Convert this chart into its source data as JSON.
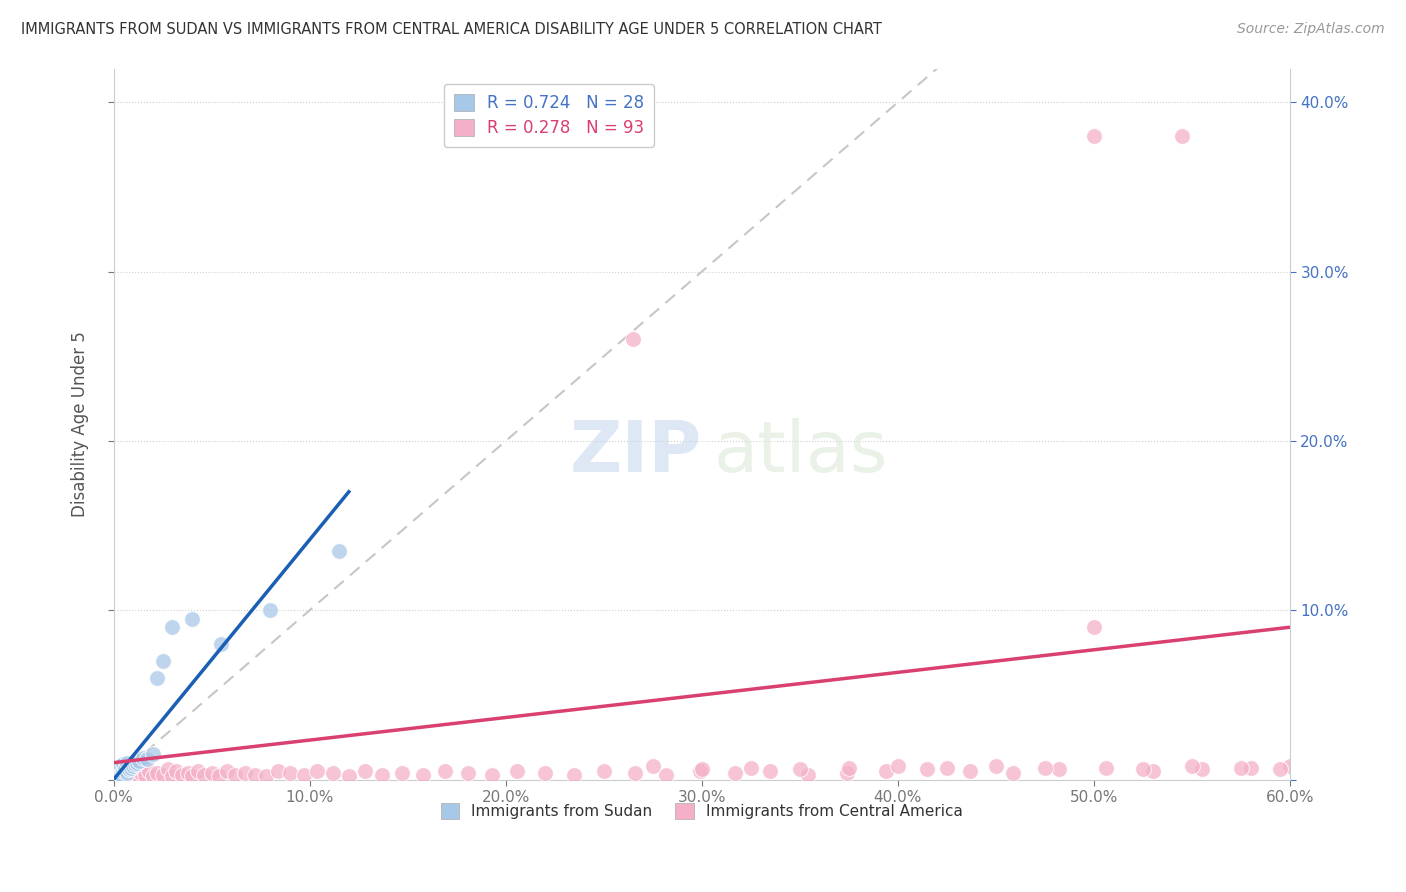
{
  "title": "IMMIGRANTS FROM SUDAN VS IMMIGRANTS FROM CENTRAL AMERICA DISABILITY AGE UNDER 5 CORRELATION CHART",
  "source": "Source: ZipAtlas.com",
  "ylabel": "Disability Age Under 5",
  "xlabel_sudan": "Immigrants from Sudan",
  "xlabel_ca": "Immigrants from Central America",
  "R_sudan": 0.724,
  "N_sudan": 28,
  "R_ca": 0.278,
  "N_ca": 93,
  "xlim": [
    0,
    0.6
  ],
  "ylim": [
    0,
    0.42
  ],
  "yticks": [
    0.0,
    0.1,
    0.2,
    0.3,
    0.4
  ],
  "xticks": [
    0.0,
    0.1,
    0.2,
    0.3,
    0.4,
    0.5,
    0.6
  ],
  "color_sudan": "#a8c8e8",
  "color_ca": "#f4b0c8",
  "trend_sudan": "#1a5fb4",
  "trend_ca": "#d94070",
  "background_color": "#ffffff",
  "sudan_x": [
    0.001,
    0.002,
    0.002,
    0.003,
    0.003,
    0.004,
    0.004,
    0.005,
    0.005,
    0.006,
    0.007,
    0.007,
    0.008,
    0.009,
    0.01,
    0.011,
    0.012,
    0.013,
    0.015,
    0.017,
    0.02,
    0.022,
    0.025,
    0.03,
    0.04,
    0.055,
    0.08,
    0.115
  ],
  "sudan_y": [
    0.002,
    0.003,
    0.005,
    0.004,
    0.007,
    0.003,
    0.008,
    0.005,
    0.009,
    0.006,
    0.004,
    0.01,
    0.006,
    0.007,
    0.008,
    0.009,
    0.01,
    0.011,
    0.013,
    0.012,
    0.015,
    0.06,
    0.07,
    0.09,
    0.095,
    0.08,
    0.1,
    0.135
  ],
  "ca_x": [
    0.001,
    0.002,
    0.002,
    0.003,
    0.003,
    0.004,
    0.004,
    0.005,
    0.005,
    0.006,
    0.006,
    0.007,
    0.008,
    0.008,
    0.009,
    0.01,
    0.01,
    0.011,
    0.012,
    0.013,
    0.014,
    0.015,
    0.016,
    0.018,
    0.02,
    0.022,
    0.025,
    0.028,
    0.03,
    0.032,
    0.035,
    0.038,
    0.04,
    0.043,
    0.046,
    0.05,
    0.054,
    0.058,
    0.062,
    0.067,
    0.072,
    0.078,
    0.084,
    0.09,
    0.097,
    0.104,
    0.112,
    0.12,
    0.128,
    0.137,
    0.147,
    0.158,
    0.169,
    0.181,
    0.193,
    0.206,
    0.22,
    0.235,
    0.25,
    0.266,
    0.282,
    0.299,
    0.317,
    0.335,
    0.354,
    0.374,
    0.394,
    0.415,
    0.437,
    0.459,
    0.482,
    0.506,
    0.53,
    0.555,
    0.58,
    0.6,
    0.595,
    0.575,
    0.55,
    0.525,
    0.5,
    0.475,
    0.45,
    0.425,
    0.4,
    0.375,
    0.35,
    0.325,
    0.3,
    0.275,
    0.265,
    0.5,
    0.545
  ],
  "ca_y": [
    0.003,
    0.002,
    0.005,
    0.003,
    0.006,
    0.002,
    0.004,
    0.003,
    0.007,
    0.002,
    0.005,
    0.003,
    0.004,
    0.006,
    0.002,
    0.004,
    0.007,
    0.003,
    0.005,
    0.002,
    0.004,
    0.006,
    0.003,
    0.005,
    0.002,
    0.004,
    0.003,
    0.006,
    0.002,
    0.005,
    0.003,
    0.004,
    0.002,
    0.005,
    0.003,
    0.004,
    0.002,
    0.005,
    0.003,
    0.004,
    0.003,
    0.002,
    0.005,
    0.004,
    0.003,
    0.005,
    0.004,
    0.002,
    0.005,
    0.003,
    0.004,
    0.003,
    0.005,
    0.004,
    0.003,
    0.005,
    0.004,
    0.003,
    0.005,
    0.004,
    0.003,
    0.005,
    0.004,
    0.005,
    0.003,
    0.004,
    0.005,
    0.006,
    0.005,
    0.004,
    0.006,
    0.007,
    0.005,
    0.006,
    0.007,
    0.008,
    0.006,
    0.007,
    0.008,
    0.006,
    0.09,
    0.007,
    0.008,
    0.007,
    0.008,
    0.007,
    0.006,
    0.007,
    0.006,
    0.008,
    0.26,
    0.38,
    0.38
  ]
}
